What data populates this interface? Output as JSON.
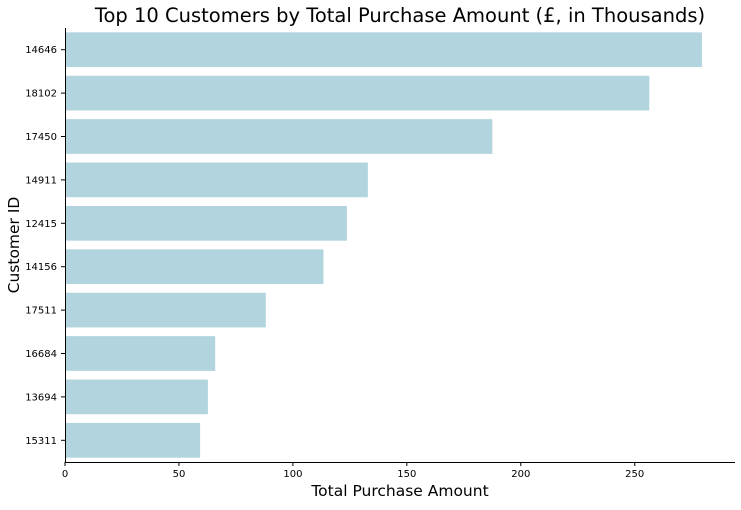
{
  "chart_data": {
    "type": "bar",
    "orientation": "horizontal",
    "title": "Top 10 Customers by Total Purchase Amount (£, in Thousands)",
    "xlabel": "Total Purchase Amount",
    "ylabel": "Customer ID",
    "categories": [
      "14646",
      "18102",
      "17450",
      "14911",
      "12415",
      "14156",
      "17511",
      "16684",
      "13694",
      "15311"
    ],
    "values": [
      279.5,
      256.4,
      187.5,
      132.9,
      123.7,
      113.4,
      88.1,
      65.9,
      62.7,
      59.3
    ],
    "xlim": [
      0,
      294
    ],
    "xticks": [
      0,
      50,
      100,
      150,
      200,
      250
    ],
    "grid": false,
    "bar_color": "#b2d4df",
    "spines": [
      "left",
      "bottom"
    ]
  }
}
